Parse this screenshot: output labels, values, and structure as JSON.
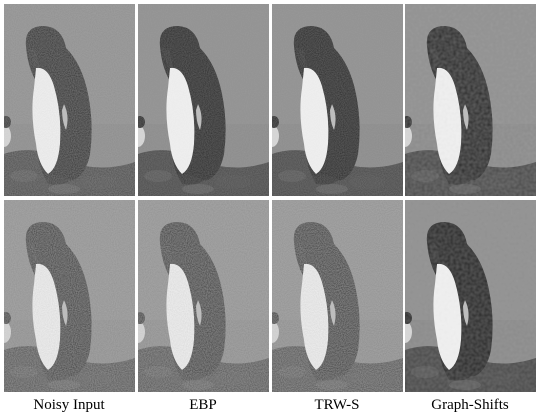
{
  "figure": {
    "columns": [
      {
        "key": "noisy_input",
        "caption": "Noisy Input"
      },
      {
        "key": "ebp",
        "caption": "EBP"
      },
      {
        "key": "trws",
        "caption": "TRW-S"
      },
      {
        "key": "graph_shifts",
        "caption": "Graph-Shifts"
      }
    ],
    "rows": [
      {
        "key": "row1",
        "noise_level": "low"
      },
      {
        "key": "row2",
        "noise_level": "high"
      }
    ],
    "subject": "penguin",
    "colors": {
      "background_gray": "#8a8a8a",
      "ground_dark": "#3a3a3a",
      "penguin_black": "#1e1e1e",
      "penguin_white": "#f2f2f2",
      "caption_text": "#000000"
    }
  }
}
